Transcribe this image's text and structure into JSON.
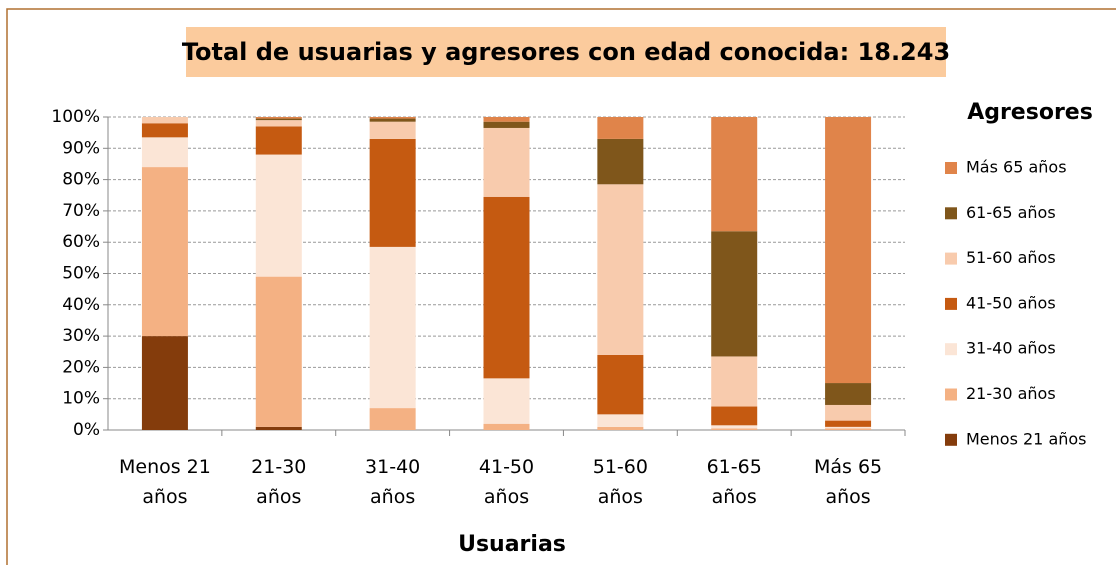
{
  "chart_data": {
    "type": "stacked_bar",
    "title": "Total de usuarias y agresores con edad conocida: 18.243",
    "x_label": "Usuarias",
    "legend_title": "Agresores",
    "categories": [
      "Menos 21 años",
      "21-30 años",
      "31-40 años",
      "41-50 años",
      "51-60 años",
      "61-65 años",
      "Más 65 años"
    ],
    "series": [
      {
        "name": "Menos 21 años",
        "color": "#843c0c",
        "values": [
          30,
          1,
          0,
          0,
          0,
          0,
          0
        ]
      },
      {
        "name": "21-30 años",
        "color": "#f4b183",
        "values": [
          54,
          48,
          7,
          2,
          1,
          0.5,
          0.5
        ]
      },
      {
        "name": "31-40 años",
        "color": "#fbe5d6",
        "values": [
          9.5,
          39,
          51.5,
          14.5,
          4,
          1,
          0.5
        ]
      },
      {
        "name": "41-50 años",
        "color": "#c55a11",
        "values": [
          4.5,
          9,
          34.5,
          58,
          19,
          6,
          2
        ]
      },
      {
        "name": "51-60 años",
        "color": "#f8cbad",
        "values": [
          2,
          2,
          5.5,
          22,
          54.5,
          16,
          5
        ]
      },
      {
        "name": "61-65 años",
        "color": "#7f561b",
        "values": [
          0,
          0.5,
          1,
          2,
          14.5,
          40,
          7
        ]
      },
      {
        "name": "Más 65 años",
        "color": "#e0844a",
        "values": [
          0,
          0.5,
          0.5,
          1.5,
          7,
          36.5,
          85
        ]
      }
    ],
    "ylim": [
      0,
      100
    ],
    "yticks": [
      {
        "value": 0,
        "label": "0%"
      },
      {
        "value": 10,
        "label": "10%"
      },
      {
        "value": 20,
        "label": "20%"
      },
      {
        "value": 30,
        "label": "30%"
      },
      {
        "value": 40,
        "label": "40%"
      },
      {
        "value": 50,
        "label": "50%"
      },
      {
        "value": 60,
        "label": "60%"
      },
      {
        "value": 70,
        "label": "70%"
      },
      {
        "value": 80,
        "label": "80%"
      },
      {
        "value": 90,
        "label": "90%"
      },
      {
        "value": 100,
        "label": "100%"
      }
    ],
    "grid": true
  }
}
